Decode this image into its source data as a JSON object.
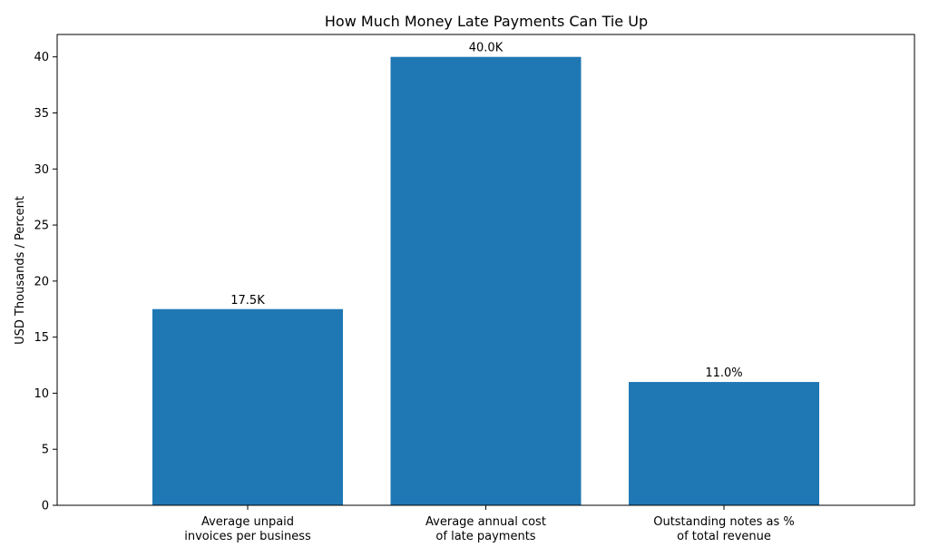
{
  "chart_data": {
    "type": "bar",
    "title": "How Much Money Late Payments Can Tie Up",
    "xlabel": "",
    "ylabel": "USD Thousands / Percent",
    "categories": [
      [
        "Average unpaid",
        "invoices per business"
      ],
      [
        "Average annual cost",
        "of late payments"
      ],
      [
        "Outstanding notes as %",
        "of total revenue"
      ]
    ],
    "values": [
      17.5,
      40.0,
      11.0
    ],
    "data_labels": [
      "17.5K",
      "40.0K",
      "11.0%"
    ],
    "ylim": [
      0,
      42
    ],
    "yticks": [
      0,
      5,
      10,
      15,
      20,
      25,
      30,
      35,
      40
    ],
    "bar_color": "#1f77b4",
    "grid": false,
    "legend": "none"
  }
}
